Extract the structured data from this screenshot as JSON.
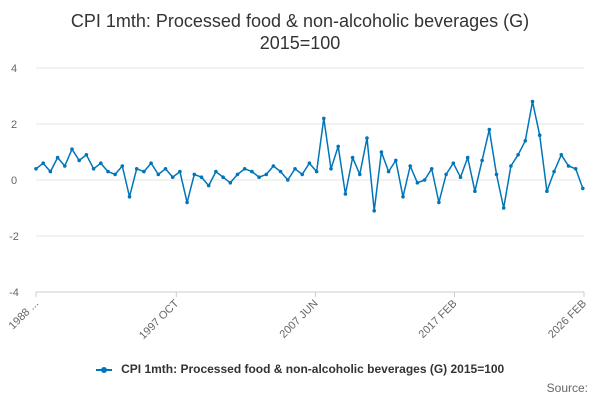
{
  "chart_data": {
    "type": "line",
    "title": "CPI 1mth: Processed food & non-alcoholic beverages (G)",
    "subtitle": "2015=100",
    "xlabel": "",
    "ylabel": "",
    "x_tick_labels": [
      "1988 ...",
      "1997 OCT",
      "2007 JUN",
      "2017 FEB",
      "2026 FEB"
    ],
    "x_tick_years": [
      1988.0,
      1997.75,
      2007.42,
      2017.08,
      2026.08
    ],
    "x_range": [
      1988.0,
      2026.08
    ],
    "ylim": [
      -4,
      4
    ],
    "y_ticks": [
      -4,
      -2,
      0,
      2,
      4
    ],
    "grid": true,
    "legend_position": "bottom",
    "series": [
      {
        "name": "CPI 1mth: Processed food & non-alcoholic beverages (G) 2015=100",
        "color": "#0075b9",
        "x": [
          1988.0,
          1988.5,
          1989.0,
          1989.5,
          1990.0,
          1990.5,
          1991.0,
          1991.5,
          1992.0,
          1992.5,
          1993.0,
          1993.5,
          1994.0,
          1994.5,
          1995.0,
          1995.5,
          1996.0,
          1996.5,
          1997.0,
          1997.5,
          1998.0,
          1998.5,
          1999.0,
          1999.5,
          2000.0,
          2000.5,
          2001.0,
          2001.5,
          2002.0,
          2002.5,
          2003.0,
          2003.5,
          2004.0,
          2004.5,
          2005.0,
          2005.5,
          2006.0,
          2006.5,
          2007.0,
          2007.5,
          2008.0,
          2008.5,
          2009.0,
          2009.5,
          2010.0,
          2010.5,
          2011.0,
          2011.5,
          2012.0,
          2012.5,
          2013.0,
          2013.5,
          2014.0,
          2014.5,
          2015.0,
          2015.5,
          2016.0,
          2016.5,
          2017.0,
          2017.5,
          2018.0,
          2018.5,
          2019.0,
          2019.5,
          2020.0,
          2020.5,
          2021.0,
          2021.5,
          2022.0,
          2022.5,
          2023.0,
          2023.5,
          2024.0,
          2024.5,
          2025.0,
          2025.5,
          2026.0
        ],
        "values": [
          0.4,
          0.6,
          0.3,
          0.8,
          0.5,
          1.1,
          0.7,
          0.9,
          0.4,
          0.6,
          0.3,
          0.2,
          0.5,
          -0.6,
          0.4,
          0.3,
          0.6,
          0.2,
          0.4,
          0.1,
          0.3,
          -0.8,
          0.2,
          0.1,
          -0.2,
          0.3,
          0.1,
          -0.1,
          0.2,
          0.4,
          0.3,
          0.1,
          0.2,
          0.5,
          0.3,
          0.0,
          0.4,
          0.2,
          0.6,
          0.3,
          2.2,
          0.4,
          1.2,
          -0.5,
          0.8,
          0.2,
          1.5,
          -1.1,
          1.0,
          0.3,
          0.7,
          -0.6,
          0.5,
          -0.1,
          0.0,
          0.4,
          -0.8,
          0.2,
          0.6,
          0.1,
          0.8,
          -0.4,
          0.7,
          1.8,
          0.2,
          -1.0,
          0.5,
          0.9,
          1.4,
          2.8,
          1.6,
          -0.4,
          0.3,
          0.9,
          0.5,
          0.4,
          -0.3
        ]
      }
    ],
    "source": "Source:"
  }
}
